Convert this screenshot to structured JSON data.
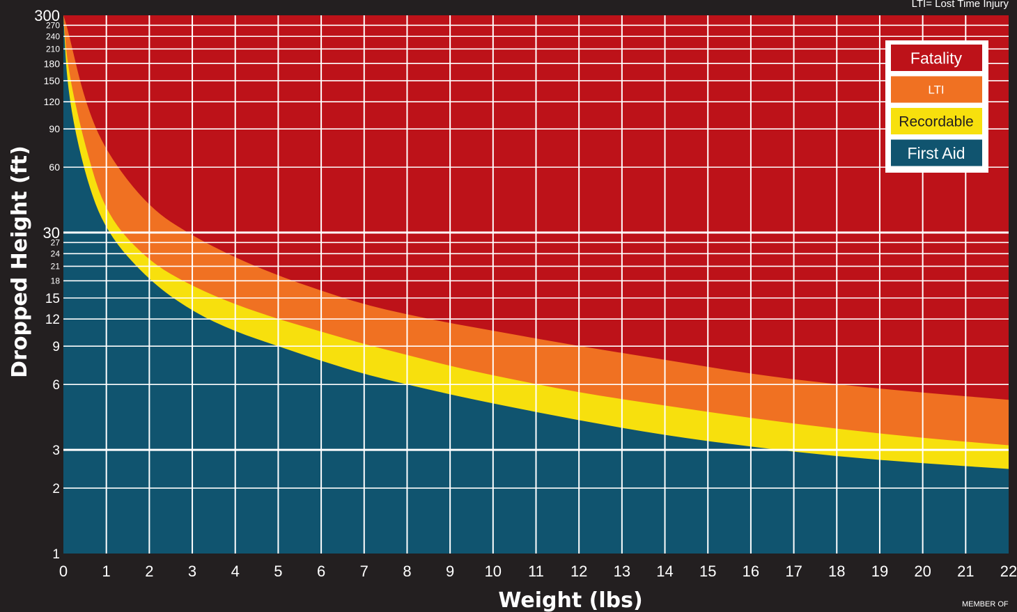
{
  "note": "LTI= Lost Time Injury",
  "footer": "MEMBER OF",
  "colors": {
    "background": "#231f20",
    "fatality": "#bd1219",
    "lti": "#f07122",
    "recordable": "#f7e00d",
    "first_aid": "#10546f",
    "grid": "#ffffff"
  },
  "chart_data": {
    "type": "area",
    "title": "",
    "xlabel": "Weight (lbs)",
    "ylabel": "Dropped Height (ft)",
    "x_scale": "linear",
    "y_scale": "log",
    "xlim": [
      0,
      22
    ],
    "ylim": [
      1,
      300
    ],
    "x_ticks": [
      "0",
      "1",
      "2",
      "3",
      "4",
      "5",
      "6",
      "7",
      "8",
      "9",
      "10",
      "11",
      "12",
      "13",
      "14",
      "15",
      "16",
      "17",
      "18",
      "19",
      "20",
      "21",
      "22"
    ],
    "y_ticks": [
      {
        "label": "300",
        "value": 300
      },
      {
        "label": "270",
        "value": 270
      },
      {
        "label": "240",
        "value": 240
      },
      {
        "label": "210",
        "value": 210
      },
      {
        "label": "180",
        "value": 180
      },
      {
        "label": "150",
        "value": 150
      },
      {
        "label": "120",
        "value": 120
      },
      {
        "label": "90",
        "value": 90
      },
      {
        "label": "60",
        "value": 60
      },
      {
        "label": "30",
        "value": 30
      },
      {
        "label": "27",
        "value": 27
      },
      {
        "label": "24",
        "value": 24
      },
      {
        "label": "21",
        "value": 21
      },
      {
        "label": "18",
        "value": 18
      },
      {
        "label": "15",
        "value": 15
      },
      {
        "label": "12",
        "value": 12
      },
      {
        "label": "9",
        "value": 9
      },
      {
        "label": "6",
        "value": 6
      },
      {
        "label": "3",
        "value": 3
      },
      {
        "label": "2",
        "value": 2
      },
      {
        "label": "1",
        "value": 1
      }
    ],
    "grid": true,
    "legend_position": "top-right",
    "legend": [
      "Fatality",
      "LTI",
      "Recordable",
      "First Aid"
    ],
    "boundaries": [
      {
        "between": [
          "First Aid",
          "Recordable"
        ],
        "x": [
          0.1,
          0.5,
          1,
          2,
          3,
          4,
          5,
          6,
          7,
          8,
          9,
          10,
          12,
          14,
          16,
          18,
          20,
          22
        ],
        "y": [
          130,
          55,
          30,
          18,
          13,
          10.5,
          9,
          7.7,
          6.7,
          6,
          5.4,
          4.9,
          4.1,
          3.5,
          3.1,
          2.8,
          2.6,
          2.45
        ]
      },
      {
        "between": [
          "Recordable",
          "LTI"
        ],
        "x": [
          0.1,
          0.5,
          1,
          2,
          3,
          4,
          5,
          6,
          7,
          8,
          9,
          10,
          12,
          14,
          16,
          18,
          20,
          22
        ],
        "y": [
          170,
          75,
          36,
          22,
          17,
          14,
          12,
          10.5,
          9.2,
          8.2,
          7.3,
          6.6,
          5.5,
          4.8,
          4.2,
          3.75,
          3.4,
          3.15
        ]
      },
      {
        "between": [
          "LTI",
          "Fatality"
        ],
        "x": [
          0.1,
          0.5,
          1,
          2,
          3,
          4,
          5,
          6,
          7,
          8,
          9,
          10,
          12,
          14,
          16,
          18,
          20,
          22
        ],
        "y": [
          260,
          120,
          70,
          39,
          29,
          23,
          19,
          16.2,
          14,
          12.6,
          11.5,
          10.6,
          9,
          7.8,
          6.7,
          6,
          5.5,
          5.1
        ]
      }
    ]
  }
}
